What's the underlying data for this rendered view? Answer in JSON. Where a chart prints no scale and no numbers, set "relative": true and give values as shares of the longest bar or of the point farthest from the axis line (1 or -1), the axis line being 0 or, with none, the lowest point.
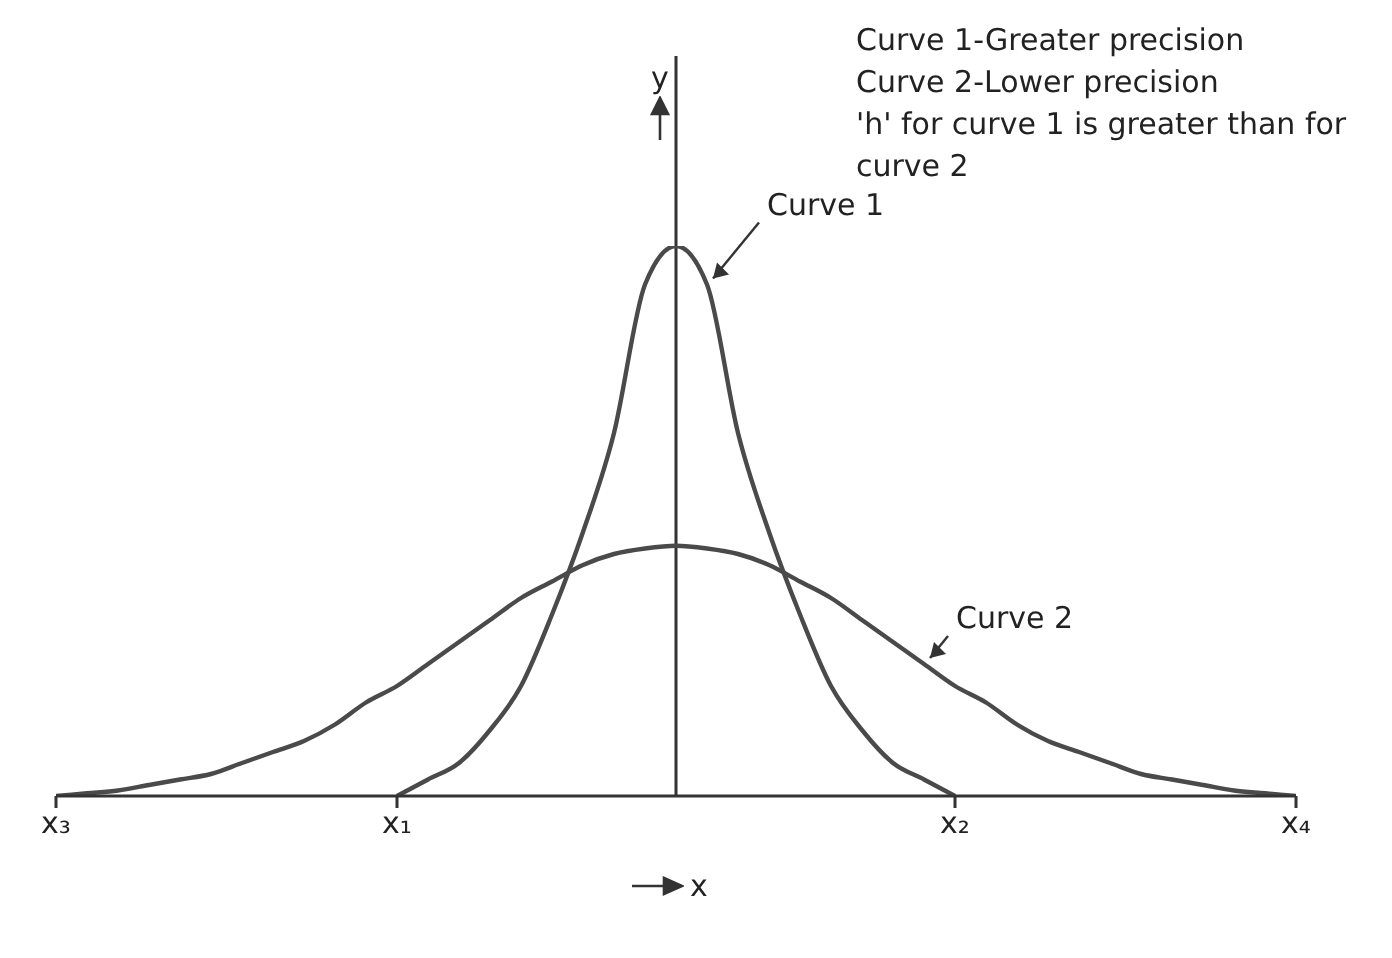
{
  "chart_data": {
    "type": "line",
    "relative": true,
    "xlabel": "x",
    "ylabel": "y",
    "categories": [
      "x₃",
      null,
      null,
      null,
      null,
      null,
      null,
      null,
      null,
      null,
      null,
      "x₁",
      null,
      null,
      null,
      null,
      null,
      null,
      null,
      null,
      null,
      null,
      null,
      null,
      null,
      null,
      null,
      null,
      null,
      "x₂",
      null,
      null,
      null,
      null,
      null,
      null,
      null,
      null,
      null,
      null,
      "x₄"
    ],
    "series": [
      {
        "name": "Curve 1",
        "color": "#4a4a4a",
        "values": [
          null,
          null,
          null,
          null,
          null,
          null,
          null,
          null,
          null,
          null,
          null,
          0,
          0.03,
          0.06,
          0.12,
          0.2,
          0.33,
          0.48,
          0.66,
          0.93,
          1,
          0.93,
          0.66,
          0.48,
          0.33,
          0.2,
          0.12,
          0.06,
          0.03,
          0,
          null,
          null,
          null,
          null,
          null,
          null,
          null,
          null,
          null,
          null,
          null
        ]
      },
      {
        "name": "Curve 2",
        "color": "#4a4a4a",
        "values": [
          0,
          0.005,
          0.01,
          0.02,
          0.03,
          0.04,
          0.06,
          0.08,
          0.1,
          0.13,
          0.17,
          0.2,
          0.24,
          0.28,
          0.32,
          0.36,
          0.39,
          0.42,
          0.44,
          0.45,
          0.455,
          0.45,
          0.44,
          0.42,
          0.39,
          0.36,
          0.32,
          0.28,
          0.24,
          0.2,
          0.17,
          0.13,
          0.1,
          0.08,
          0.06,
          0.04,
          0.03,
          0.02,
          0.01,
          0.005,
          0
        ]
      }
    ],
    "annotations": [
      "Curve 1-Greater precision",
      "Curve 2-Lower precision",
      "'h' for curve 1 is greater than for curve 2"
    ]
  }
}
